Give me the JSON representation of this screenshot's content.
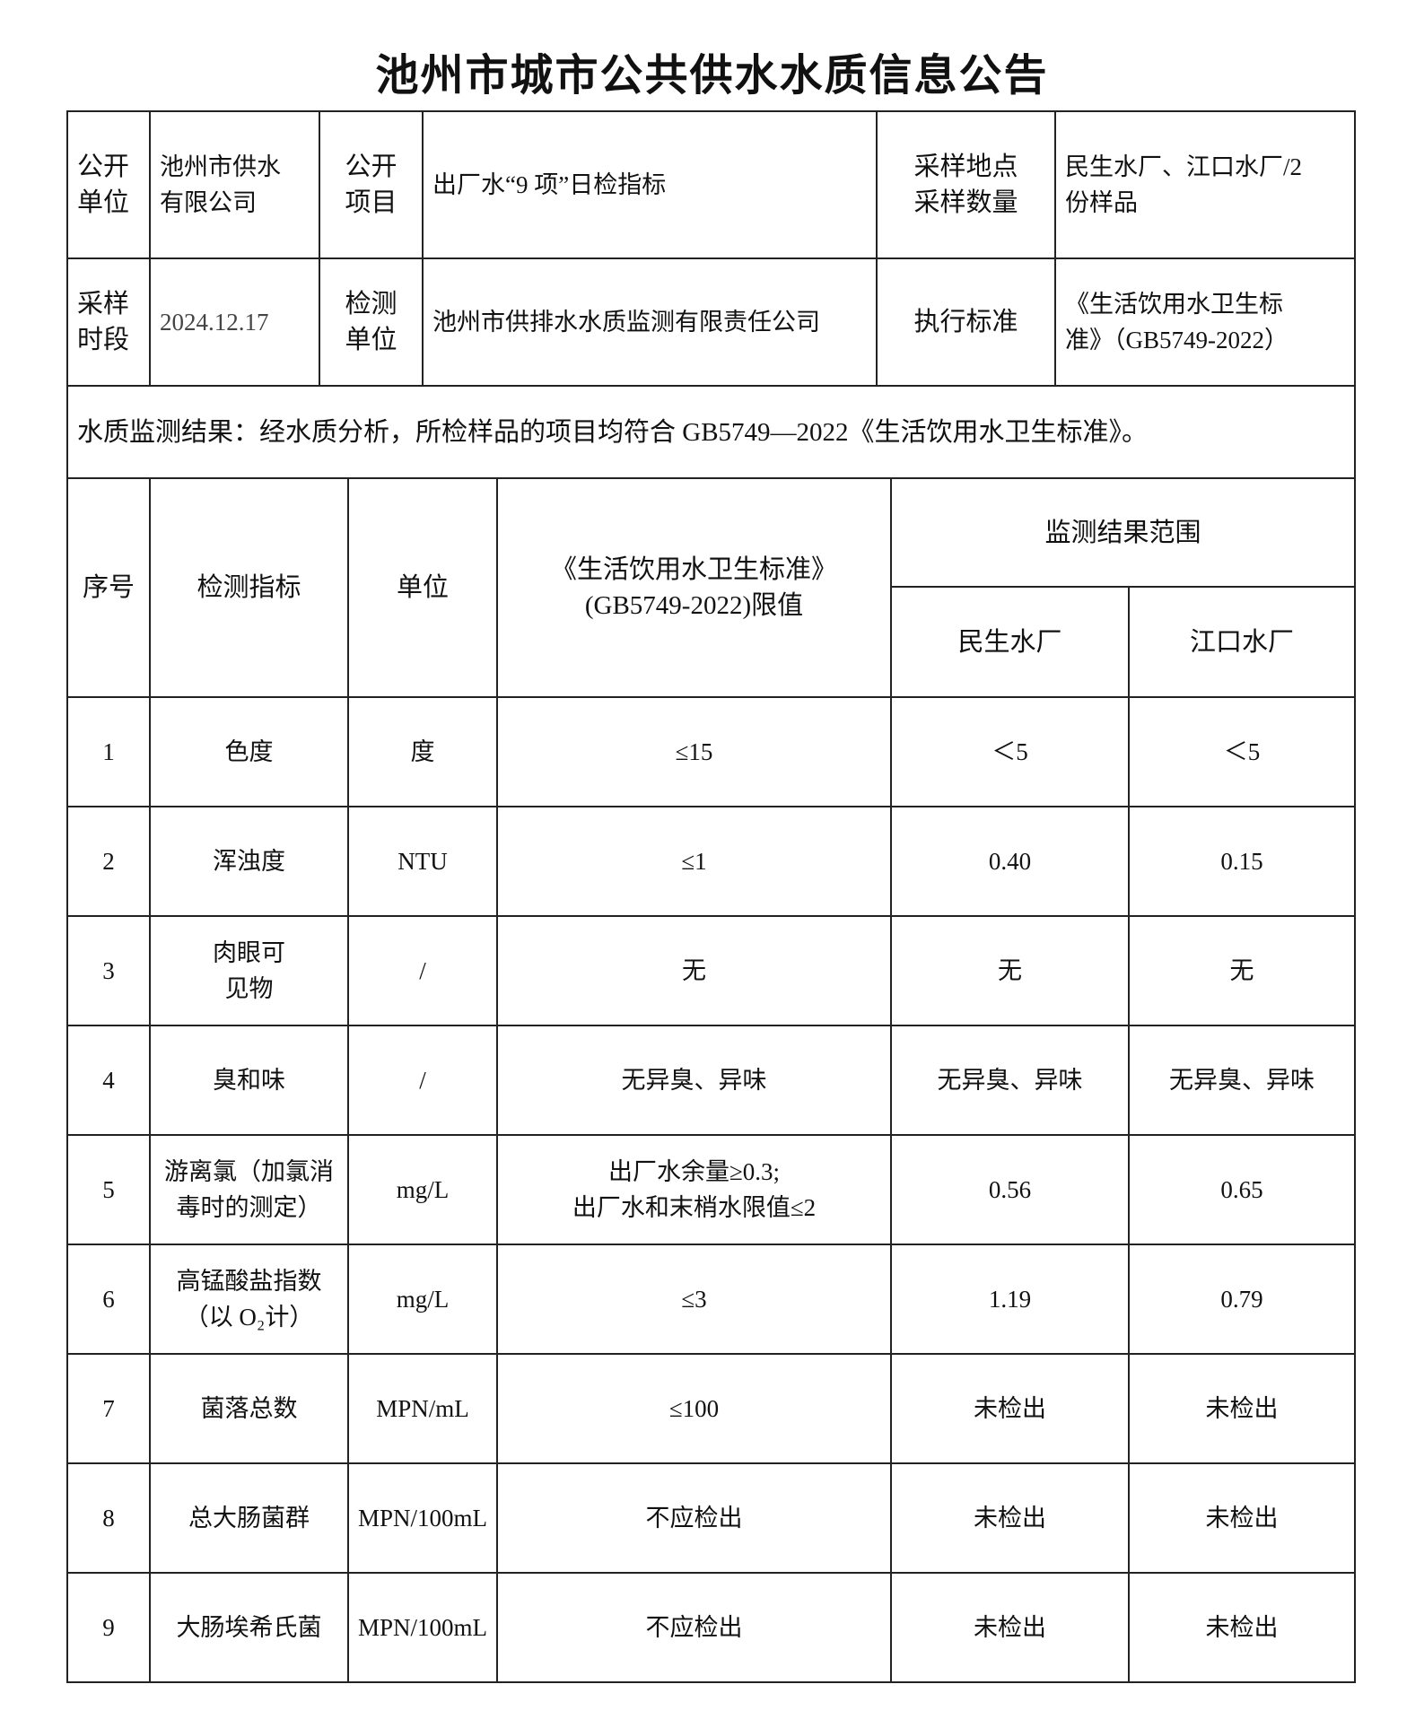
{
  "title": "池州市城市公共供水水质信息公告",
  "info": {
    "row1": [
      {
        "label": "公开单位",
        "value": "池州市供水有限公司"
      },
      {
        "label": "公开项目",
        "value": "出厂水“9项”日检指标"
      },
      {
        "label": "采样地点采样数量",
        "value": "民生水厂、江口水厂/2份样品"
      }
    ],
    "label_1a": "公开",
    "label_1b": "单位",
    "value_1a": "池州市供水",
    "value_1b": "有限公司",
    "label_2a": "公开",
    "label_2b": "项目",
    "value_2": "出厂水“9 项”日检指标",
    "label_3a": "采样地点",
    "label_3b": "采样数量",
    "value_3a": "民生水厂、江口水厂/2",
    "value_3b": "份样品",
    "label_4a": "采样",
    "label_4b": "时段",
    "value_4": "2024.12.17",
    "label_5a": "检测",
    "label_5b": "单位",
    "value_5": "池州市供排水水质监测有限责任公司",
    "label_6": "执行标准",
    "value_6a": "《生活饮用水卫生标",
    "value_6b": "准》（GB5749-2022）"
  },
  "conclusion": "水质监测结果：经水质分析，所检样品的项目均符合 GB5749—2022《生活饮用水卫生标准》。",
  "table": {
    "headers": {
      "no": "序号",
      "indicator": "检测指标",
      "unit": "单位",
      "limit_a": "《生活饮用水卫生标准》",
      "limit_b": "(GB5749-2022)限值",
      "range": "监测结果范围",
      "plant1": "民生水厂",
      "plant2": "江口水厂"
    },
    "rows": [
      {
        "no": "1",
        "indicator": "色度",
        "indicator2": "",
        "unit": "度",
        "limit": "≤15",
        "limit2": "",
        "plant1": "＜5",
        "plant2": "＜5"
      },
      {
        "no": "2",
        "indicator": "浑浊度",
        "indicator2": "",
        "unit": "NTU",
        "limit": "≤1",
        "limit2": "",
        "plant1": "0.40",
        "plant2": "0.15"
      },
      {
        "no": "3",
        "indicator": "肉眼可",
        "indicator2": "见物",
        "unit": "/",
        "limit": "无",
        "limit2": "",
        "plant1": "无",
        "plant2": "无"
      },
      {
        "no": "4",
        "indicator": "臭和味",
        "indicator2": "",
        "unit": "/",
        "limit": "无异臭、异味",
        "limit2": "",
        "plant1": "无异臭、异味",
        "plant2": "无异臭、异味"
      },
      {
        "no": "5",
        "indicator": "游离氯（加氯消",
        "indicator2": "毒时的测定）",
        "unit": "mg/L",
        "limit": "出厂水余量≥0.3;",
        "limit2": "出厂水和末梢水限值≤2",
        "plant1": "0.56",
        "plant2": "0.65"
      },
      {
        "no": "6",
        "indicator": "高锰酸盐指数",
        "indicator2": "（以 O₂计）",
        "unit": "mg/L",
        "limit": "≤3",
        "limit2": "",
        "plant1": "1.19",
        "plant2": "0.79"
      },
      {
        "no": "7",
        "indicator": "菌落总数",
        "indicator2": "",
        "unit": "MPN/mL",
        "limit": "≤100",
        "limit2": "",
        "plant1": "未检出",
        "plant2": "未检出"
      },
      {
        "no": "8",
        "indicator": "总大肠菌群",
        "indicator2": "",
        "unit": "MPN/100mL",
        "limit": "不应检出",
        "limit2": "",
        "plant1": "未检出",
        "plant2": "未检出"
      },
      {
        "no": "9",
        "indicator": "大肠埃希氏菌",
        "indicator2": "",
        "unit": "MPN/100mL",
        "limit": "不应检出",
        "limit2": "",
        "plant1": "未检出",
        "plant2": "未检出"
      }
    ]
  }
}
